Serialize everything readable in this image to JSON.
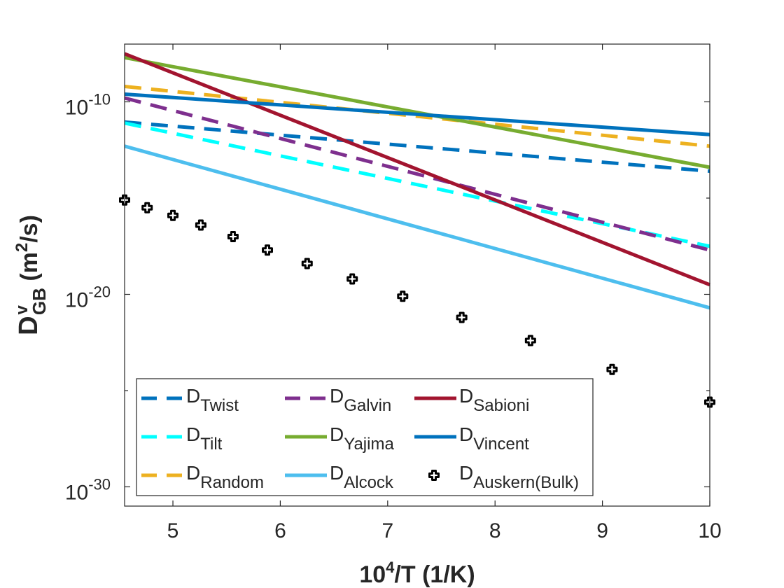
{
  "chart_data": {
    "type": "line",
    "xlabel": {
      "base": "10",
      "sup": "4",
      "rest": "/T (1/K)"
    },
    "ylabel": {
      "main": "D",
      "sup": "v",
      "sub": "GB",
      "rest1": " (m",
      "sup2": "2",
      "rest2": "/s)"
    },
    "xlim": [
      4.55,
      10
    ],
    "ylim_log10": [
      -31,
      -7
    ],
    "x_ticks": [
      {
        "value": 5,
        "label": "5"
      },
      {
        "value": 6,
        "label": "6"
      },
      {
        "value": 7,
        "label": "7"
      },
      {
        "value": 8,
        "label": "8"
      },
      {
        "value": 9,
        "label": "9"
      },
      {
        "value": 10,
        "label": "10"
      }
    ],
    "y_ticks": [
      {
        "exp": -10,
        "base": "10",
        "sup": "-10"
      },
      {
        "exp": -20,
        "base": "10",
        "sup": "-20"
      },
      {
        "exp": -30,
        "base": "10",
        "sup": "-30"
      }
    ],
    "y_minor_ticks": [
      -15,
      -25
    ],
    "series": [
      {
        "key": "twist",
        "name": "D",
        "sub": "Twist",
        "color": "#0072BD",
        "dash": "dashed",
        "kind": "line",
        "x": [
          4.55,
          10
        ],
        "log10y": [
          -11.05,
          -13.6
        ]
      },
      {
        "key": "tilt",
        "name": "D",
        "sub": "Tilt",
        "color": "#00FFFF",
        "dash": "dashed",
        "kind": "line",
        "x": [
          4.55,
          10
        ],
        "log10y": [
          -11.1,
          -17.5
        ]
      },
      {
        "key": "random",
        "name": "D",
        "sub": "Random",
        "color": "#EDB120",
        "dash": "dashed",
        "kind": "line",
        "x": [
          4.55,
          10
        ],
        "log10y": [
          -9.2,
          -12.3
        ]
      },
      {
        "key": "galvin",
        "name": "D",
        "sub": "Galvin",
        "color": "#7E2F8E",
        "dash": "dashed",
        "kind": "line",
        "x": [
          4.55,
          10
        ],
        "log10y": [
          -9.8,
          -17.7
        ]
      },
      {
        "key": "yajima",
        "name": "D",
        "sub": "Yajima",
        "color": "#77AC30",
        "dash": "solid",
        "kind": "line",
        "x": [
          4.55,
          10
        ],
        "log10y": [
          -7.7,
          -13.4
        ]
      },
      {
        "key": "alcock",
        "name": "D",
        "sub": "Alcock",
        "color": "#4DBEEE",
        "dash": "solid",
        "kind": "line",
        "x": [
          4.55,
          10
        ],
        "log10y": [
          -12.3,
          -20.7
        ]
      },
      {
        "key": "sabioni",
        "name": "D",
        "sub": "Sabioni",
        "color": "#A2142F",
        "dash": "solid",
        "kind": "line",
        "x": [
          4.55,
          10
        ],
        "log10y": [
          -7.5,
          -19.5
        ]
      },
      {
        "key": "vincent",
        "name": "D",
        "sub": "Vincent",
        "color": "#0072BD",
        "dash": "solid",
        "kind": "line",
        "x": [
          4.55,
          10
        ],
        "log10y": [
          -9.6,
          -11.7
        ]
      },
      {
        "key": "auskern",
        "name": "D",
        "sub": "Auskern(Bulk)",
        "color": "#000000",
        "dash": "none",
        "kind": "markers",
        "x": [
          4.55,
          4.76,
          5.0,
          5.26,
          5.56,
          5.88,
          6.25,
          6.67,
          7.14,
          7.69,
          8.33,
          9.09,
          10.0
        ],
        "log10y": [
          -15.1,
          -15.5,
          -15.9,
          -16.4,
          -17.0,
          -17.7,
          -18.4,
          -19.2,
          -20.1,
          -21.2,
          -22.4,
          -23.9,
          -25.6
        ]
      }
    ],
    "legend": {
      "placement": "bottom-left",
      "order": [
        "twist",
        "galvin",
        "sabioni",
        "tilt",
        "yajima",
        "vincent",
        "random",
        "alcock",
        "auskern"
      ]
    }
  }
}
